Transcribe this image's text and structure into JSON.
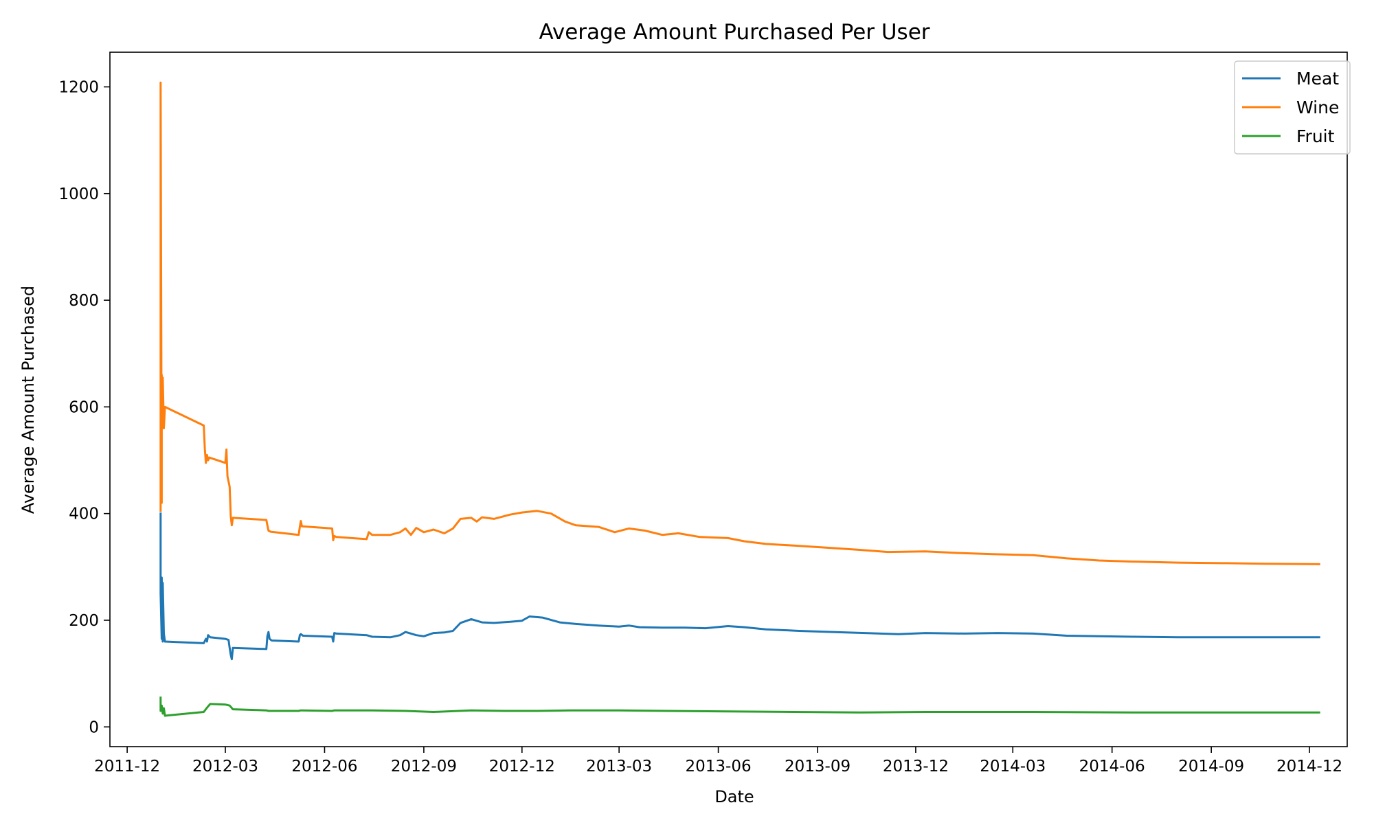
{
  "chart_data": {
    "type": "line",
    "title": "Average Amount Purchased Per User",
    "xlabel": "Date",
    "ylabel": "Average Amount Purchased",
    "x_axis_type": "date",
    "xlim": [
      "2011-11-15",
      "2015-01-05"
    ],
    "ylim": [
      -37,
      1265
    ],
    "x_ticks": [
      "2011-12",
      "2012-03",
      "2012-06",
      "2012-09",
      "2012-12",
      "2013-03",
      "2013-06",
      "2013-09",
      "2013-12",
      "2014-03",
      "2014-06",
      "2014-09",
      "2014-12"
    ],
    "y_ticks": [
      0,
      200,
      400,
      600,
      800,
      1000,
      1200
    ],
    "grid": false,
    "legend_position": "top-right",
    "series": [
      {
        "name": "Meat",
        "color": "#1f77b4",
        "points": [
          [
            "2012-01-01",
            400
          ],
          [
            "2012-01-01",
            250
          ],
          [
            "2012-01-02",
            165
          ],
          [
            "2012-01-02",
            280
          ],
          [
            "2012-01-03",
            160
          ],
          [
            "2012-01-03",
            270
          ],
          [
            "2012-01-04",
            175
          ],
          [
            "2012-01-05",
            160
          ],
          [
            "2012-02-10",
            157
          ],
          [
            "2012-02-12",
            165
          ],
          [
            "2012-02-13",
            160
          ],
          [
            "2012-02-14",
            172
          ],
          [
            "2012-02-16",
            168
          ],
          [
            "2012-03-01",
            165
          ],
          [
            "2012-03-04",
            163
          ],
          [
            "2012-03-05",
            148
          ],
          [
            "2012-03-06",
            135
          ],
          [
            "2012-03-07",
            127
          ],
          [
            "2012-03-08",
            148
          ],
          [
            "2012-04-08",
            146
          ],
          [
            "2012-04-09",
            170
          ],
          [
            "2012-04-10",
            178
          ],
          [
            "2012-04-11",
            165
          ],
          [
            "2012-04-13",
            162
          ],
          [
            "2012-05-08",
            160
          ],
          [
            "2012-05-09",
            172
          ],
          [
            "2012-05-10",
            174
          ],
          [
            "2012-05-12",
            171
          ],
          [
            "2012-06-08",
            169
          ],
          [
            "2012-06-09",
            160
          ],
          [
            "2012-06-10",
            176
          ],
          [
            "2012-06-12",
            175
          ],
          [
            "2012-07-10",
            172
          ],
          [
            "2012-07-15",
            169
          ],
          [
            "2012-08-01",
            168
          ],
          [
            "2012-08-10",
            172
          ],
          [
            "2012-08-15",
            178
          ],
          [
            "2012-08-25",
            172
          ],
          [
            "2012-09-01",
            170
          ],
          [
            "2012-09-10",
            176
          ],
          [
            "2012-09-20",
            177
          ],
          [
            "2012-09-28",
            180
          ],
          [
            "2012-10-05",
            195
          ],
          [
            "2012-10-15",
            202
          ],
          [
            "2012-10-25",
            196
          ],
          [
            "2012-11-05",
            195
          ],
          [
            "2012-11-20",
            197
          ],
          [
            "2012-12-01",
            199
          ],
          [
            "2012-12-08",
            207
          ],
          [
            "2012-12-20",
            205
          ],
          [
            "2013-01-05",
            196
          ],
          [
            "2013-01-20",
            193
          ],
          [
            "2013-02-10",
            190
          ],
          [
            "2013-03-01",
            188
          ],
          [
            "2013-03-10",
            190
          ],
          [
            "2013-03-20",
            187
          ],
          [
            "2013-04-10",
            186
          ],
          [
            "2013-05-01",
            186
          ],
          [
            "2013-05-20",
            185
          ],
          [
            "2013-06-10",
            189
          ],
          [
            "2013-06-25",
            187
          ],
          [
            "2013-07-15",
            183
          ],
          [
            "2013-08-15",
            180
          ],
          [
            "2013-09-15",
            178
          ],
          [
            "2013-10-15",
            176
          ],
          [
            "2013-11-15",
            174
          ],
          [
            "2013-12-10",
            176
          ],
          [
            "2014-01-15",
            175
          ],
          [
            "2014-02-15",
            176
          ],
          [
            "2014-03-20",
            175
          ],
          [
            "2014-04-20",
            171
          ],
          [
            "2014-05-20",
            170
          ],
          [
            "2014-06-20",
            169
          ],
          [
            "2014-08-01",
            168
          ],
          [
            "2014-09-15",
            168
          ],
          [
            "2014-10-20",
            168
          ],
          [
            "2014-12-10",
            168
          ]
        ]
      },
      {
        "name": "Wine",
        "color": "#ff7f0e",
        "points": [
          [
            "2012-01-01",
            405
          ],
          [
            "2012-01-01",
            1208
          ],
          [
            "2012-01-02",
            420
          ],
          [
            "2012-01-02",
            660
          ],
          [
            "2012-01-03",
            560
          ],
          [
            "2012-01-03",
            655
          ],
          [
            "2012-01-04",
            560
          ],
          [
            "2012-01-05",
            600
          ],
          [
            "2012-02-10",
            565
          ],
          [
            "2012-02-11",
            520
          ],
          [
            "2012-02-12",
            495
          ],
          [
            "2012-02-13",
            510
          ],
          [
            "2012-02-14",
            500
          ],
          [
            "2012-02-15",
            505
          ],
          [
            "2012-03-01",
            495
          ],
          [
            "2012-03-02",
            520
          ],
          [
            "2012-03-03",
            470
          ],
          [
            "2012-03-05",
            450
          ],
          [
            "2012-03-06",
            395
          ],
          [
            "2012-03-07",
            378
          ],
          [
            "2012-03-08",
            392
          ],
          [
            "2012-04-08",
            388
          ],
          [
            "2012-04-09",
            378
          ],
          [
            "2012-04-10",
            368
          ],
          [
            "2012-04-12",
            366
          ],
          [
            "2012-05-08",
            360
          ],
          [
            "2012-05-09",
            375
          ],
          [
            "2012-05-10",
            386
          ],
          [
            "2012-05-11",
            376
          ],
          [
            "2012-06-08",
            372
          ],
          [
            "2012-06-09",
            350
          ],
          [
            "2012-06-10",
            358
          ],
          [
            "2012-06-12",
            356
          ],
          [
            "2012-07-10",
            352
          ],
          [
            "2012-07-12",
            365
          ],
          [
            "2012-07-15",
            360
          ],
          [
            "2012-08-01",
            360
          ],
          [
            "2012-08-10",
            365
          ],
          [
            "2012-08-15",
            372
          ],
          [
            "2012-08-20",
            360
          ],
          [
            "2012-08-25",
            373
          ],
          [
            "2012-09-01",
            365
          ],
          [
            "2012-09-10",
            370
          ],
          [
            "2012-09-20",
            363
          ],
          [
            "2012-09-28",
            372
          ],
          [
            "2012-10-05",
            390
          ],
          [
            "2012-10-15",
            392
          ],
          [
            "2012-10-20",
            385
          ],
          [
            "2012-10-25",
            393
          ],
          [
            "2012-11-05",
            390
          ],
          [
            "2012-11-20",
            398
          ],
          [
            "2012-12-01",
            402
          ],
          [
            "2012-12-15",
            405
          ],
          [
            "2012-12-28",
            400
          ],
          [
            "2013-01-10",
            385
          ],
          [
            "2013-01-20",
            378
          ],
          [
            "2013-02-10",
            375
          ],
          [
            "2013-02-25",
            365
          ],
          [
            "2013-03-10",
            372
          ],
          [
            "2013-03-25",
            368
          ],
          [
            "2013-04-10",
            360
          ],
          [
            "2013-04-25",
            363
          ],
          [
            "2013-05-15",
            356
          ],
          [
            "2013-06-10",
            354
          ],
          [
            "2013-06-25",
            348
          ],
          [
            "2013-07-15",
            343
          ],
          [
            "2013-08-10",
            340
          ],
          [
            "2013-09-10",
            336
          ],
          [
            "2013-10-10",
            332
          ],
          [
            "2013-11-05",
            328
          ],
          [
            "2013-12-10",
            329
          ],
          [
            "2014-01-10",
            326
          ],
          [
            "2014-02-10",
            324
          ],
          [
            "2014-03-20",
            322
          ],
          [
            "2014-04-20",
            316
          ],
          [
            "2014-05-20",
            312
          ],
          [
            "2014-06-20",
            310
          ],
          [
            "2014-08-01",
            308
          ],
          [
            "2014-09-15",
            307
          ],
          [
            "2014-10-20",
            306
          ],
          [
            "2014-12-10",
            305
          ]
        ]
      },
      {
        "name": "Fruit",
        "color": "#2ca02c",
        "points": [
          [
            "2012-01-01",
            55
          ],
          [
            "2012-01-01",
            30
          ],
          [
            "2012-01-02",
            40
          ],
          [
            "2012-01-03",
            25
          ],
          [
            "2012-01-04",
            35
          ],
          [
            "2012-01-05",
            21
          ],
          [
            "2012-02-10",
            28
          ],
          [
            "2012-02-13",
            36
          ],
          [
            "2012-02-16",
            43
          ],
          [
            "2012-03-01",
            42
          ],
          [
            "2012-03-05",
            40
          ],
          [
            "2012-03-08",
            33
          ],
          [
            "2012-04-08",
            31
          ],
          [
            "2012-04-10",
            30
          ],
          [
            "2012-05-08",
            30
          ],
          [
            "2012-05-10",
            31
          ],
          [
            "2012-06-08",
            30
          ],
          [
            "2012-06-10",
            31
          ],
          [
            "2012-07-15",
            31
          ],
          [
            "2012-08-15",
            30
          ],
          [
            "2012-09-10",
            28
          ],
          [
            "2012-10-15",
            31
          ],
          [
            "2012-11-15",
            30
          ],
          [
            "2012-12-15",
            30
          ],
          [
            "2013-01-15",
            31
          ],
          [
            "2013-03-01",
            31
          ],
          [
            "2013-04-15",
            30
          ],
          [
            "2013-06-10",
            29
          ],
          [
            "2013-08-10",
            28
          ],
          [
            "2013-10-10",
            27
          ],
          [
            "2013-12-10",
            28
          ],
          [
            "2014-03-20",
            28
          ],
          [
            "2014-06-20",
            27
          ],
          [
            "2014-09-15",
            27
          ],
          [
            "2014-12-10",
            27
          ]
        ]
      }
    ]
  }
}
